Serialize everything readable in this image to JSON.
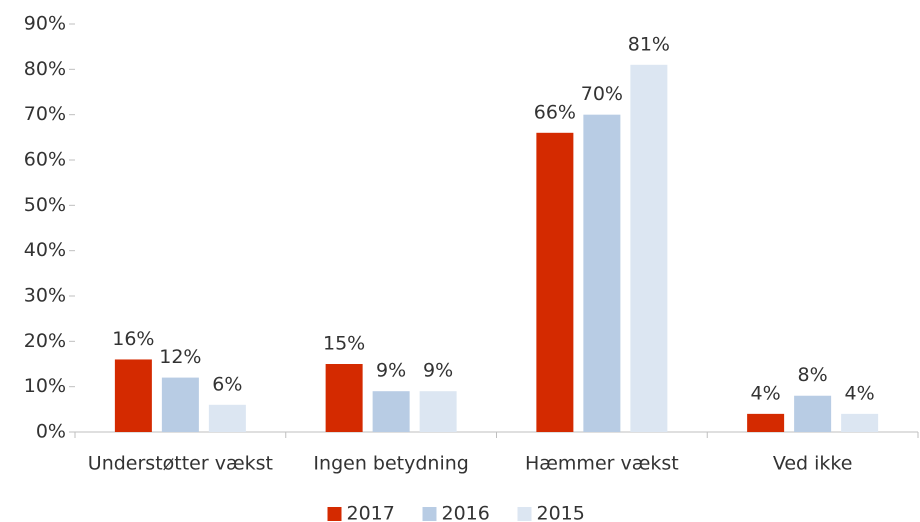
{
  "chart_data": {
    "type": "bar",
    "categories": [
      "Understøtter vækst",
      "Ingen betydning",
      "Hæmmer vækst",
      "Ved ikke"
    ],
    "series": [
      {
        "name": "2017",
        "color": "#d42a00",
        "values": [
          16,
          15,
          66,
          4
        ],
        "value_labels": [
          "16%",
          "15%",
          "66%",
          "4%"
        ]
      },
      {
        "name": "2016",
        "color": "#b8cce4",
        "values": [
          12,
          9,
          70,
          8
        ],
        "value_labels": [
          "12%",
          "9%",
          "70%",
          "8%"
        ]
      },
      {
        "name": "2015",
        "color": "#dce6f2",
        "values": [
          6,
          9,
          81,
          4
        ],
        "value_labels": [
          "6%",
          "9%",
          "81%",
          "4%"
        ]
      }
    ],
    "ylim": [
      0,
      90
    ],
    "yticks": [
      {
        "value": 0,
        "label": "0%"
      },
      {
        "value": 10,
        "label": "10%"
      },
      {
        "value": 20,
        "label": "20%"
      },
      {
        "value": 30,
        "label": "30%"
      },
      {
        "value": 40,
        "label": "40%"
      },
      {
        "value": 50,
        "label": "50%"
      },
      {
        "value": 60,
        "label": "60%"
      },
      {
        "value": 70,
        "label": "70%"
      },
      {
        "value": 80,
        "label": "80%"
      },
      {
        "value": 90,
        "label": "90%"
      }
    ],
    "grid": false,
    "legend": "bottom"
  }
}
